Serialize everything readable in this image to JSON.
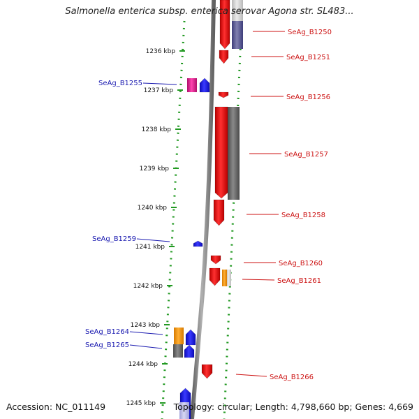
{
  "title": "Salmonella enterica subsp. enterica serovar Agona str. SL483...",
  "footer": {
    "accession": "Accession: NC_011149",
    "summary": "Topology: circular; Length: 4,798,660 bp; Genes: 4,669"
  },
  "ruler": {
    "unit": "kbp",
    "ticks": [
      "1236 kbp",
      "1237 kbp",
      "1238 kbp",
      "1239 kbp",
      "1240 kbp",
      "1241 kbp",
      "1242 kbp",
      "1243 kbp",
      "1244 kbp",
      "1245 kbp"
    ]
  },
  "colors": {
    "forward_gene": "#ee1111",
    "reverse_gene": "#1a1aee",
    "hypothetical": "#ff9900",
    "rna_highlight": "#e0208a",
    "blast_hit": "#666666",
    "blast_hit_alt": "#555599",
    "backbone": "#888888",
    "guide_dots": "#229922",
    "forward_label": "#cc1111",
    "reverse_label": "#1a1ab0"
  },
  "forward_labels": [
    "SeAg_B1250",
    "SeAg_B1251",
    "SeAg_B1256",
    "SeAg_B1257",
    "SeAg_B1258",
    "SeAg_B1260",
    "SeAg_B1261",
    "SeAg_B1266"
  ],
  "reverse_labels": [
    "SeAg_B1255",
    "SeAg_B1259",
    "SeAg_B1264",
    "SeAg_B1265"
  ]
}
